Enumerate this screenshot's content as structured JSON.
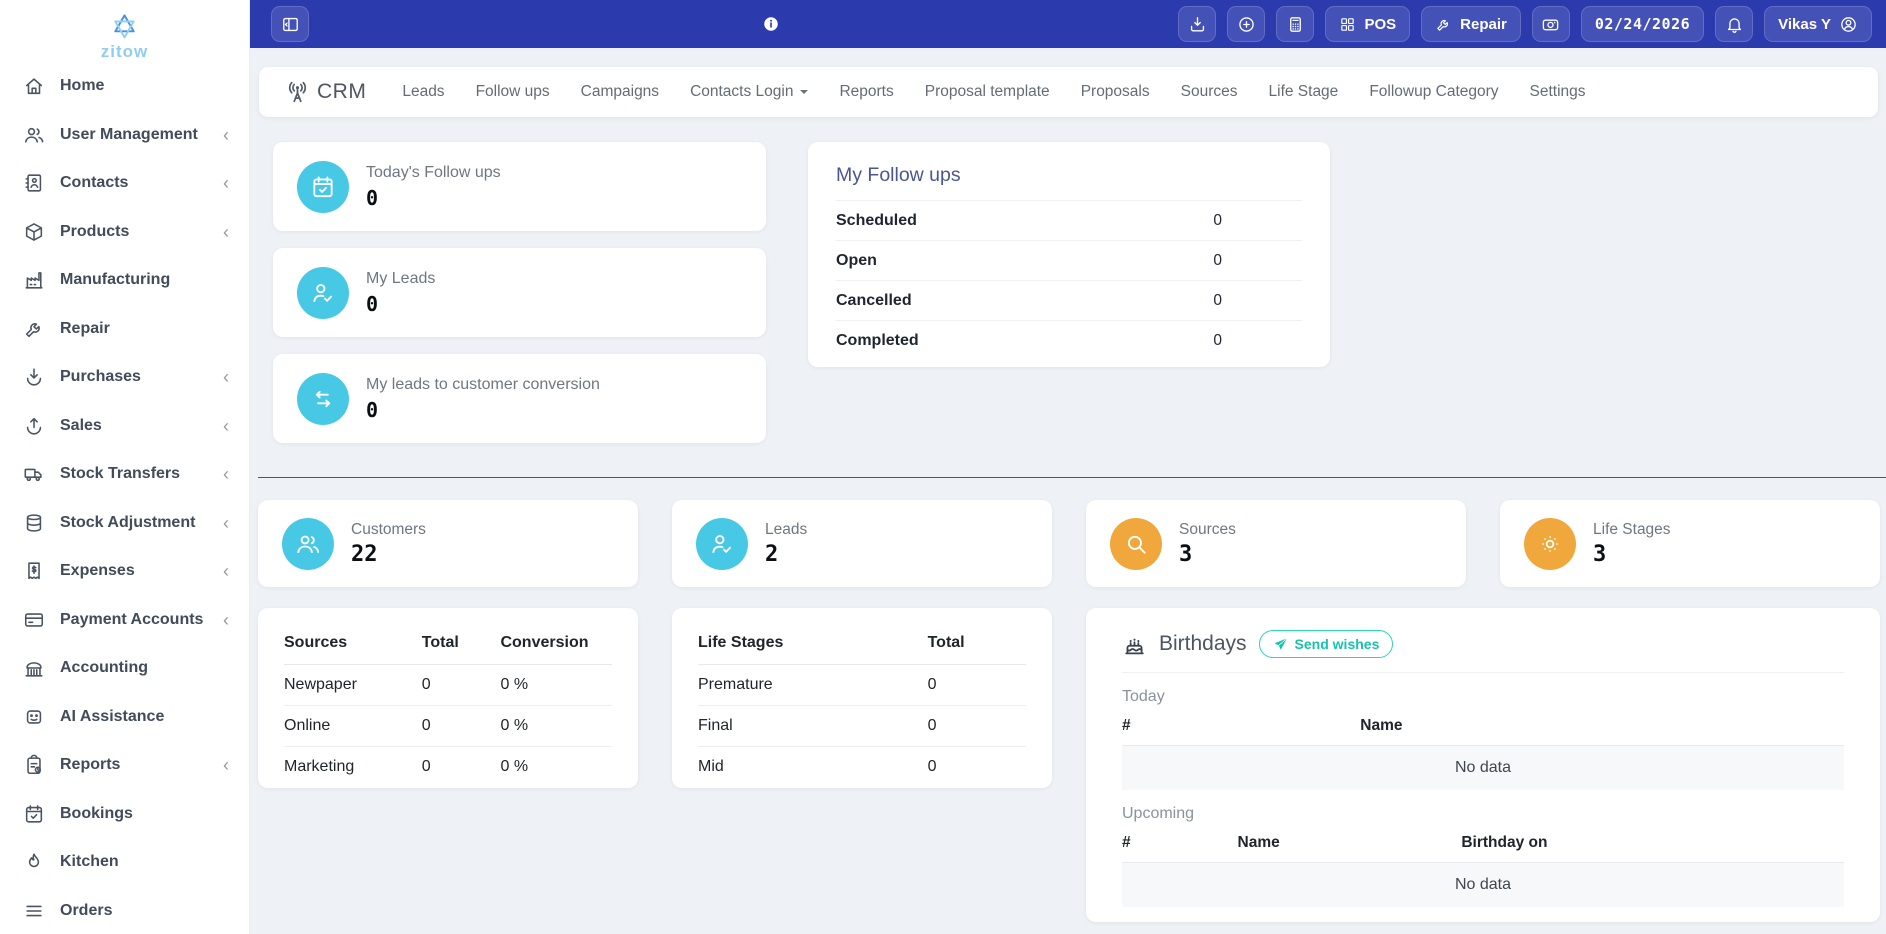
{
  "brand": {
    "name": "zitow"
  },
  "topbar": {
    "pos_label": "POS",
    "repair_label": "Repair",
    "date": "02/24/2026",
    "user_name": "Vikas Y"
  },
  "sidebar": {
    "items": [
      {
        "label": "Home",
        "icon": "home",
        "chevron": false
      },
      {
        "label": "User Management",
        "icon": "users",
        "chevron": true
      },
      {
        "label": "Contacts",
        "icon": "contacts",
        "chevron": true
      },
      {
        "label": "Products",
        "icon": "box",
        "chevron": true
      },
      {
        "label": "Manufacturing",
        "icon": "factory",
        "chevron": false
      },
      {
        "label": "Repair",
        "icon": "wrench",
        "chevron": false
      },
      {
        "label": "Purchases",
        "icon": "purchase",
        "chevron": true
      },
      {
        "label": "Sales",
        "icon": "sales",
        "chevron": true
      },
      {
        "label": "Stock Transfers",
        "icon": "truck",
        "chevron": true
      },
      {
        "label": "Stock Adjustment",
        "icon": "database",
        "chevron": true
      },
      {
        "label": "Expenses",
        "icon": "receipt",
        "chevron": true
      },
      {
        "label": "Payment Accounts",
        "icon": "credit-card",
        "chevron": true
      },
      {
        "label": "Accounting",
        "icon": "bank",
        "chevron": false
      },
      {
        "label": "AI Assistance",
        "icon": "robot",
        "chevron": false
      },
      {
        "label": "Reports",
        "icon": "clipboard",
        "chevron": true
      },
      {
        "label": "Bookings",
        "icon": "calendar-check",
        "chevron": false
      },
      {
        "label": "Kitchen",
        "icon": "flame",
        "chevron": false
      },
      {
        "label": "Orders",
        "icon": "menu",
        "chevron": false
      }
    ]
  },
  "crm_nav": {
    "brand": "CRM",
    "items": [
      {
        "label": "Leads"
      },
      {
        "label": "Follow ups"
      },
      {
        "label": "Campaigns"
      },
      {
        "label": "Contacts Login",
        "dropdown": true
      },
      {
        "label": "Reports"
      },
      {
        "label": "Proposal template"
      },
      {
        "label": "Proposals"
      },
      {
        "label": "Sources"
      },
      {
        "label": "Life Stage"
      },
      {
        "label": "Followup Category"
      },
      {
        "label": "Settings"
      }
    ]
  },
  "summary_cards": [
    {
      "title": "Today's Follow ups",
      "value": "0",
      "icon": "calendar-check"
    },
    {
      "title": "My Leads",
      "value": "0",
      "icon": "user-check"
    },
    {
      "title": "My leads to customer conversion",
      "value": "0",
      "icon": "swap"
    }
  ],
  "my_followups": {
    "title": "My Follow ups",
    "rows": [
      {
        "label": "Scheduled",
        "value": "0"
      },
      {
        "label": "Open",
        "value": "0"
      },
      {
        "label": "Cancelled",
        "value": "0"
      },
      {
        "label": "Completed",
        "value": "0"
      }
    ]
  },
  "stats": [
    {
      "title": "Customers",
      "value": "22",
      "icon": "users",
      "color": "cyan"
    },
    {
      "title": "Leads",
      "value": "2",
      "icon": "user-check",
      "color": "cyan"
    },
    {
      "title": "Sources",
      "value": "3",
      "icon": "search",
      "color": "orange"
    },
    {
      "title": "Life Stages",
      "value": "3",
      "icon": "sun",
      "color": "orange"
    }
  ],
  "sources_table": {
    "headers": [
      "Sources",
      "Total",
      "Conversion"
    ],
    "rows": [
      [
        "Newpaper",
        "0",
        "0 %"
      ],
      [
        "Online",
        "0",
        "0 %"
      ],
      [
        "Marketing",
        "0",
        "0 %"
      ]
    ]
  },
  "life_stages_table": {
    "headers": [
      "Life Stages",
      "Total"
    ],
    "rows": [
      [
        "Premature",
        "0"
      ],
      [
        "Final",
        "0"
      ],
      [
        "Mid",
        "0"
      ]
    ]
  },
  "birthdays": {
    "title": "Birthdays",
    "send_wishes_label": "Send wishes",
    "today_label": "Today",
    "today_headers": [
      "#",
      "Name"
    ],
    "today_empty": "No data",
    "upcoming_label": "Upcoming",
    "upcoming_headers": [
      "#",
      "Name",
      "Birthday on"
    ],
    "upcoming_empty": "No data"
  },
  "colors": {
    "topbar_blue": "#2b3aad",
    "accent_cyan": "#47c9e5",
    "accent_orange": "#f0a73c",
    "teal_button": "#14c3ae",
    "page_background": "#eef1f5"
  }
}
